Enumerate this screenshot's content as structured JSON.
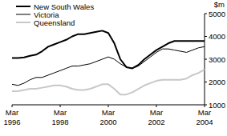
{
  "chart_data": {
    "type": "line",
    "y_label": "$m",
    "categories": [
      "Mar 1996",
      null,
      null,
      null,
      null,
      null,
      null,
      null,
      "Mar 1998",
      null,
      null,
      null,
      null,
      null,
      null,
      null,
      "Mar 2000",
      null,
      null,
      null,
      null,
      null,
      null,
      null,
      "Mar 2002",
      null,
      null,
      null,
      null,
      null,
      null,
      null,
      "Mar 2004"
    ],
    "series": [
      {
        "name": "New South Wales",
        "color": "#000000",
        "line_style": "thick",
        "values": [
          3050,
          3050,
          3080,
          3150,
          3200,
          3350,
          3550,
          3650,
          3750,
          3850,
          4000,
          4100,
          4100,
          4150,
          4200,
          4250,
          4150,
          3700,
          3000,
          2650,
          2600,
          2750,
          3000,
          3200,
          3400,
          3550,
          3700,
          3800,
          3800,
          3800,
          3800,
          3800,
          3800
        ]
      },
      {
        "name": "Victoria",
        "color": "#000000",
        "line_style": "thin",
        "values": [
          1900,
          1850,
          1950,
          2100,
          2200,
          2200,
          2300,
          2400,
          2500,
          2600,
          2700,
          2700,
          2750,
          2800,
          2900,
          3000,
          3100,
          3000,
          2800,
          2650,
          2600,
          2700,
          2900,
          3100,
          3300,
          3450,
          3450,
          3400,
          3350,
          3300,
          3400,
          3500,
          3550
        ]
      },
      {
        "name": "Queensland",
        "color": "#c8c8c8",
        "line_style": "thick",
        "values": [
          1600,
          1600,
          1650,
          1700,
          1700,
          1750,
          1800,
          1850,
          1850,
          1800,
          1700,
          1650,
          1650,
          1700,
          1800,
          1900,
          1900,
          1700,
          1450,
          1450,
          1550,
          1700,
          1850,
          1950,
          2050,
          2100,
          2100,
          2100,
          2100,
          2150,
          2300,
          2400,
          2550
        ]
      }
    ],
    "ylim": [
      1000,
      5000
    ],
    "yticks": [
      1000,
      2000,
      3000,
      4000,
      5000
    ],
    "grid": false,
    "legend": "top-left"
  }
}
